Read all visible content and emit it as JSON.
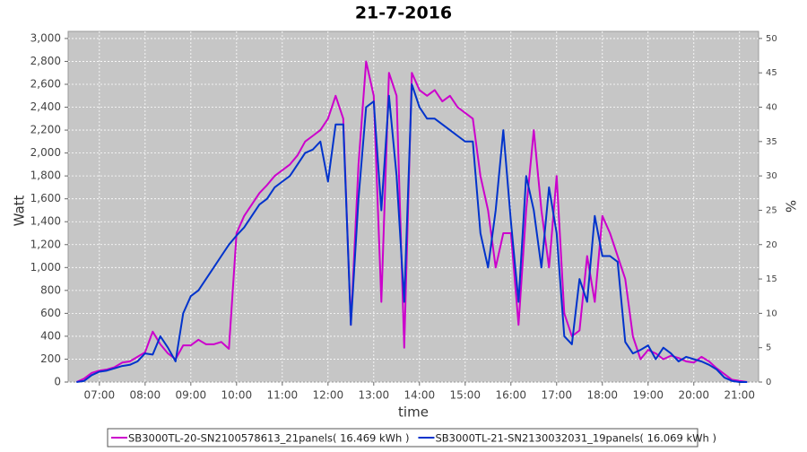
{
  "chart_data": {
    "type": "line",
    "title": "21-7-2016",
    "x_label": "time",
    "y_label": "Watt",
    "y2_label": "%",
    "x": [
      "06:30",
      "06:40",
      "06:50",
      "07:00",
      "07:10",
      "07:20",
      "07:30",
      "07:40",
      "07:50",
      "08:00",
      "08:10",
      "08:20",
      "08:30",
      "08:40",
      "08:50",
      "09:00",
      "09:10",
      "09:20",
      "09:30",
      "09:40",
      "09:50",
      "10:00",
      "10:10",
      "10:20",
      "10:30",
      "10:40",
      "10:50",
      "11:00",
      "11:10",
      "11:20",
      "11:30",
      "11:40",
      "11:50",
      "12:00",
      "12:10",
      "12:20",
      "12:30",
      "12:40",
      "12:50",
      "13:00",
      "13:10",
      "13:20",
      "13:30",
      "13:40",
      "13:50",
      "14:00",
      "14:10",
      "14:20",
      "14:30",
      "14:40",
      "14:50",
      "15:00",
      "15:10",
      "15:20",
      "15:30",
      "15:40",
      "15:50",
      "16:00",
      "16:10",
      "16:20",
      "16:30",
      "16:40",
      "16:50",
      "17:00",
      "17:10",
      "17:20",
      "17:30",
      "17:40",
      "17:50",
      "18:00",
      "18:10",
      "18:20",
      "18:30",
      "18:40",
      "18:50",
      "19:00",
      "19:10",
      "19:20",
      "19:30",
      "19:40",
      "19:50",
      "20:00",
      "20:10",
      "20:20",
      "20:30",
      "20:40",
      "20:50",
      "21:00",
      "21:10"
    ],
    "xlim": [
      "06:19",
      "21:25"
    ],
    "xticks": [
      "07:00",
      "08:00",
      "09:00",
      "10:00",
      "11:00",
      "12:00",
      "13:00",
      "14:00",
      "15:00",
      "16:00",
      "17:00",
      "18:00",
      "19:00",
      "20:00",
      "21:00"
    ],
    "ylim": [
      0,
      3062
    ],
    "yticks": [
      0,
      200,
      400,
      600,
      800,
      {
        "value": 1000,
        "label": "1,000"
      },
      {
        "value": 1200,
        "label": "1,200"
      },
      {
        "value": 1400,
        "label": "1,400"
      },
      {
        "value": 1600,
        "label": "1,600"
      },
      {
        "value": 1800,
        "label": "1,800"
      },
      {
        "value": 2000,
        "label": "2,000"
      },
      {
        "value": 2200,
        "label": "2,200"
      },
      {
        "value": 2400,
        "label": "2,400"
      },
      {
        "value": 2600,
        "label": "2,600"
      },
      {
        "value": 2800,
        "label": "2,800"
      },
      {
        "value": 3000,
        "label": "3,000"
      }
    ],
    "y2lim": [
      0,
      51.03
    ],
    "y2ticks": [
      0,
      5,
      10,
      15,
      20,
      25,
      30,
      35,
      40,
      45,
      50
    ],
    "grid": true,
    "legend": "bottom",
    "series": [
      {
        "name": "SB3000TL-20-SN2100578613_21panels( 16.469 kWh )",
        "color": "#cc00cc",
        "values": [
          0,
          30,
          80,
          100,
          110,
          130,
          170,
          180,
          220,
          260,
          440,
          330,
          250,
          200,
          320,
          320,
          370,
          330,
          330,
          350,
          290,
          1300,
          1450,
          1550,
          1650,
          1720,
          1800,
          1850,
          1900,
          1980,
          2100,
          2150,
          2200,
          2300,
          2500,
          2300,
          500,
          1900,
          2800,
          2500,
          700,
          2700,
          2500,
          300,
          2700,
          2550,
          2500,
          2550,
          2450,
          2500,
          2400,
          2350,
          2300,
          1800,
          1500,
          1000,
          1300,
          1300,
          500,
          1500,
          2200,
          1500,
          1000,
          1800,
          600,
          400,
          450,
          1100,
          700,
          1450,
          1300,
          1100,
          900,
          400,
          200,
          280,
          250,
          200,
          230,
          210,
          180,
          170,
          220,
          180,
          120,
          70,
          20,
          10,
          0
        ]
      },
      {
        "name": "SB3000TL-21-SN2130032031_19panels( 16.069 kWh )",
        "color": "#0033cc",
        "values": [
          0,
          10,
          60,
          90,
          100,
          120,
          140,
          150,
          180,
          250,
          240,
          400,
          300,
          180,
          600,
          750,
          800,
          900,
          1000,
          1100,
          1200,
          1280,
          1350,
          1450,
          1550,
          1600,
          1700,
          1750,
          1800,
          1900,
          2000,
          2030,
          2100,
          1750,
          2250,
          2250,
          500,
          1600,
          2400,
          2450,
          1500,
          2500,
          1800,
          700,
          2600,
          2400,
          2300,
          2300,
          2250,
          2200,
          2150,
          2100,
          2100,
          1300,
          1000,
          1500,
          2200,
          1400,
          700,
          1800,
          1500,
          1000,
          1700,
          1300,
          400,
          330,
          900,
          700,
          1450,
          1100,
          1100,
          1050,
          350,
          250,
          280,
          320,
          200,
          300,
          250,
          180,
          220,
          200,
          180,
          150,
          110,
          40,
          10,
          0,
          0
        ]
      }
    ]
  }
}
